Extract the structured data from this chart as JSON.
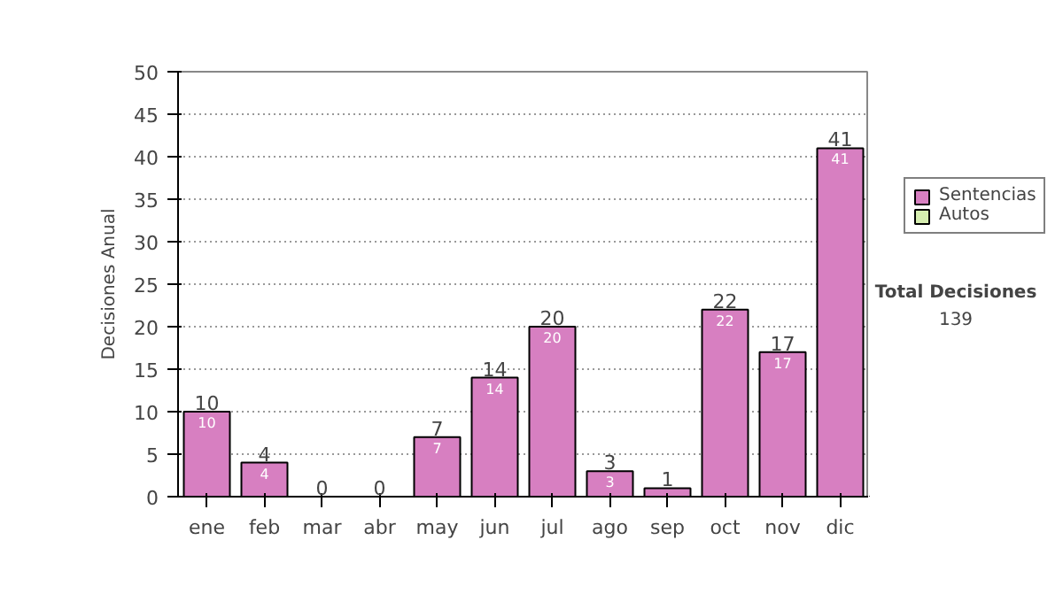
{
  "chart_data": {
    "type": "bar",
    "stacked": true,
    "ylabel": "Decisiones Anual",
    "categories": [
      "ene",
      "feb",
      "mar",
      "abr",
      "may",
      "jun",
      "jul",
      "ago",
      "sep",
      "oct",
      "nov",
      "dic"
    ],
    "series": [
      {
        "name": "Sentencias",
        "color": "#d77fc1",
        "values": [
          10,
          4,
          0,
          0,
          7,
          14,
          20,
          3,
          1,
          22,
          17,
          41
        ],
        "value_labels": [
          "10",
          "4",
          null,
          null,
          "7",
          "14",
          "20",
          "3",
          null,
          "22",
          "17",
          "41"
        ]
      },
      {
        "name": "Autos",
        "color": "#d6eeb0",
        "values": [
          0,
          0,
          0,
          0,
          0,
          0,
          0,
          0,
          0,
          0,
          0,
          0
        ]
      }
    ],
    "totals": [
      "10",
      "4",
      "0",
      "0",
      "7",
      "14",
      "20",
      "3",
      "1",
      "22",
      "17",
      "41"
    ],
    "ylim": [
      0,
      50
    ],
    "yticks": [
      0,
      5,
      10,
      15,
      20,
      25,
      30,
      35,
      40,
      45,
      50
    ],
    "grid": "y",
    "legend": "right",
    "annotations": [
      "Total Decisiones",
      "139"
    ]
  }
}
